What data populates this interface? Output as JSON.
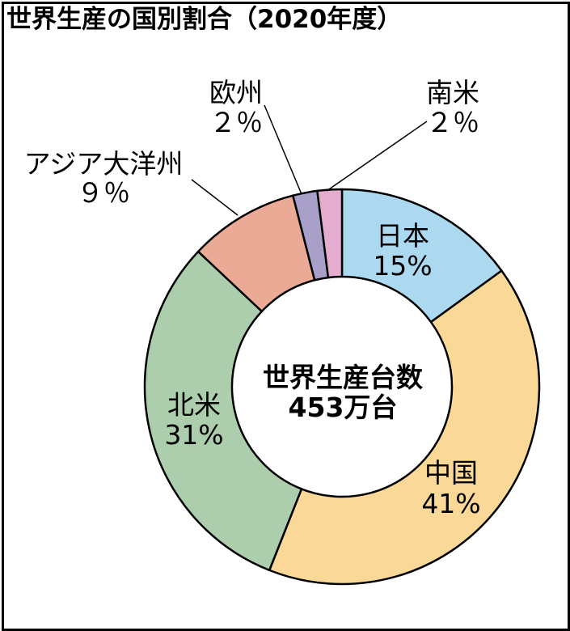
{
  "title": "世界生産の国別割合（2020年度）",
  "chart_data": {
    "type": "pie",
    "center_label": [
      "世界生産台数",
      "453万台"
    ],
    "slices": [
      {
        "label": "日本",
        "value": 15,
        "display": "15%",
        "color": "#acd8f0"
      },
      {
        "label": "中国",
        "value": 41,
        "display": "41%",
        "color": "#fad898"
      },
      {
        "label": "北米",
        "value": 31,
        "display": "31%",
        "color": "#acceac"
      },
      {
        "label": "アジア大洋州",
        "value": 9,
        "display": "９％",
        "color": "#eaaa95"
      },
      {
        "label": "欧州",
        "value": 2,
        "display": "２％",
        "color": "#a8a0c8"
      },
      {
        "label": "南米",
        "value": 2,
        "display": "２％",
        "color": "#e4add0"
      }
    ]
  }
}
